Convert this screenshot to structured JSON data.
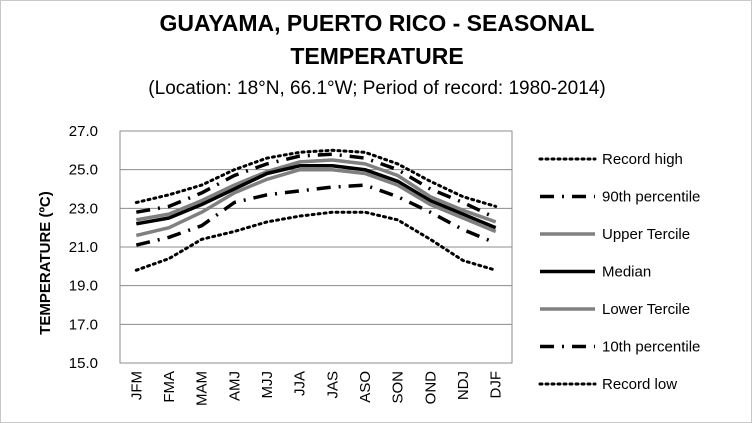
{
  "chart": {
    "title_line1": "GUAYAMA, PUERTO RICO - SEASONAL",
    "title_line2": "TEMPERATURE",
    "subtitle": "(Location: 18°N, 66.1°W; Period of record: 1980-2014)"
  },
  "chart_data": {
    "type": "line",
    "title": "GUAYAMA, PUERTO RICO - SEASONAL TEMPERATURE",
    "subtitle": "(Location: 18°N, 66.1°W; Period of record: 1980-2014)",
    "categories": [
      "JFM",
      "FMA",
      "MAM",
      "AMJ",
      "MJJ",
      "JJA",
      "JAS",
      "ASO",
      "SON",
      "OND",
      "NDJ",
      "DJF"
    ],
    "ylabel": "TEMPERATURE (ºC)",
    "xlabel": "",
    "ylim": [
      15.0,
      27.0
    ],
    "yticks": [
      "15.0",
      "17.0",
      "19.0",
      "21.0",
      "23.0",
      "25.0",
      "27.0"
    ],
    "grid": true,
    "legend_position": "right",
    "series": [
      {
        "name": "Record high",
        "color": "#000000",
        "style": "dotted",
        "values": [
          23.3,
          23.7,
          24.2,
          25.0,
          25.6,
          25.9,
          26.0,
          25.9,
          25.3,
          24.4,
          23.6,
          23.1
        ]
      },
      {
        "name": "90th percentile",
        "color": "#000000",
        "style": "dashdot",
        "values": [
          22.8,
          23.1,
          23.8,
          24.7,
          25.3,
          25.7,
          25.8,
          25.6,
          25.0,
          24.0,
          23.3,
          22.5
        ]
      },
      {
        "name": "Upper Tercile",
        "color": "#808080",
        "style": "solid",
        "values": [
          22.4,
          22.7,
          23.4,
          24.2,
          24.9,
          25.4,
          25.5,
          25.3,
          24.7,
          23.6,
          22.9,
          22.3
        ]
      },
      {
        "name": "Median",
        "color": "#000000",
        "style": "solid",
        "values": [
          22.2,
          22.5,
          23.2,
          24.0,
          24.8,
          25.2,
          25.2,
          25.0,
          24.4,
          23.4,
          22.7,
          22.0
        ]
      },
      {
        "name": "Lower Tercile",
        "color": "#808080",
        "style": "solid",
        "values": [
          21.6,
          22.0,
          22.8,
          23.8,
          24.5,
          25.0,
          25.0,
          24.8,
          24.2,
          23.2,
          22.5,
          21.8
        ]
      },
      {
        "name": "10th percentile",
        "color": "#000000",
        "style": "dashdot",
        "values": [
          21.1,
          21.5,
          22.1,
          23.3,
          23.7,
          23.9,
          24.1,
          24.2,
          23.6,
          22.8,
          21.9,
          21.2
        ]
      },
      {
        "name": "Record low",
        "color": "#000000",
        "style": "dotted",
        "values": [
          19.8,
          20.4,
          21.4,
          21.8,
          22.3,
          22.6,
          22.8,
          22.8,
          22.4,
          21.4,
          20.3,
          19.8
        ]
      }
    ]
  }
}
